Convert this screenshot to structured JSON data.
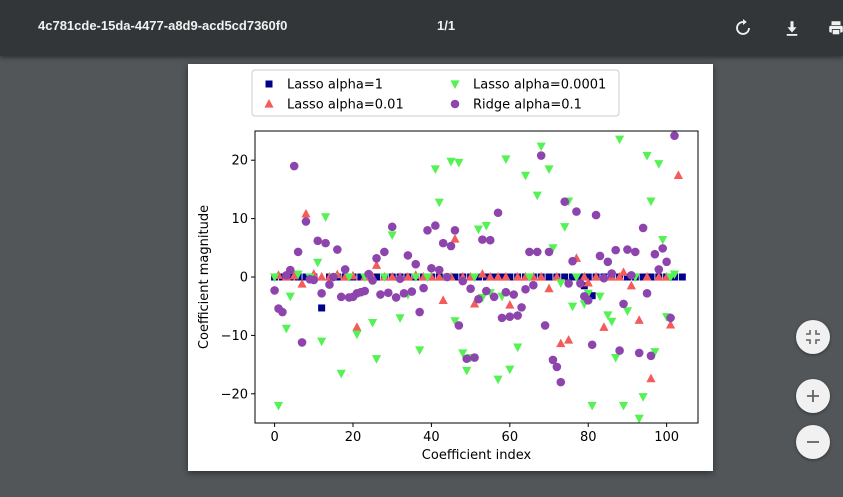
{
  "toolbar": {
    "title": "4c781cde-15da-4477-a8d9-acd5cd7360f0",
    "page_indicator": "1/1",
    "icons": [
      "rotate-icon",
      "download-icon",
      "print-icon"
    ]
  },
  "side_controls": {
    "icons": [
      "fit-page-icon",
      "zoom-in-icon",
      "zoom-out-icon"
    ]
  },
  "colors": {
    "toolbar_bg": "#323639",
    "viewer_bg": "#525659",
    "lasso_1": "#00008b",
    "lasso_001": "#f45b5b",
    "lasso_00001": "#55f255",
    "ridge_01": "#8e44ad"
  },
  "chart_data": {
    "type": "scatter",
    "xlabel": "Coefficient index",
    "ylabel": "Coefficient magnitude",
    "xlim": [
      -5,
      108
    ],
    "ylim": [
      -25,
      25
    ],
    "xticks": [
      0,
      20,
      40,
      60,
      80,
      100
    ],
    "yticks": [
      -20,
      -10,
      0,
      10,
      20
    ],
    "tick_labels_x": [
      "0",
      "20",
      "40",
      "60",
      "80",
      "100"
    ],
    "tick_labels_y": [
      "−20",
      "−10",
      "0",
      "10",
      "20"
    ],
    "legend_placement": "top-center",
    "grid": false,
    "series": [
      {
        "name": "Lasso alpha=1",
        "marker": "square",
        "color": "#00008b",
        "points": [
          [
            0,
            0
          ],
          [
            2,
            0
          ],
          [
            4,
            0
          ],
          [
            6,
            0
          ],
          [
            8,
            0
          ],
          [
            10,
            0
          ],
          [
            12,
            -5.3
          ],
          [
            14,
            0
          ],
          [
            16,
            0
          ],
          [
            18,
            0
          ],
          [
            20,
            0
          ],
          [
            22,
            0
          ],
          [
            24,
            0
          ],
          [
            26,
            0
          ],
          [
            28,
            0
          ],
          [
            30,
            0
          ],
          [
            32,
            0
          ],
          [
            34,
            0
          ],
          [
            36,
            0
          ],
          [
            38,
            0
          ],
          [
            40,
            0
          ],
          [
            42,
            0
          ],
          [
            44,
            0
          ],
          [
            46,
            0
          ],
          [
            48,
            0
          ],
          [
            50,
            0
          ],
          [
            52,
            0
          ],
          [
            54,
            0
          ],
          [
            56,
            0
          ],
          [
            58,
            0
          ],
          [
            60,
            0
          ],
          [
            62,
            0
          ],
          [
            64,
            0
          ],
          [
            66,
            0
          ],
          [
            68,
            0
          ],
          [
            70,
            0
          ],
          [
            72,
            0
          ],
          [
            74,
            0
          ],
          [
            76,
            0
          ],
          [
            78,
            0
          ],
          [
            79,
            -1.5
          ],
          [
            80,
            0
          ],
          [
            81,
            -3.2
          ],
          [
            82,
            0
          ],
          [
            84,
            0
          ],
          [
            86,
            0
          ],
          [
            88,
            0
          ],
          [
            90,
            0
          ],
          [
            92,
            0
          ],
          [
            94,
            0
          ],
          [
            96,
            0
          ],
          [
            98,
            0
          ],
          [
            100,
            0
          ],
          [
            102,
            0
          ],
          [
            104,
            0
          ]
        ]
      },
      {
        "name": "Lasso alpha=0.01",
        "marker": "triangle-up",
        "color": "#f45b5b",
        "points": [
          [
            1,
            0.3
          ],
          [
            3,
            0
          ],
          [
            5,
            0.2
          ],
          [
            7,
            -1.2
          ],
          [
            8,
            10.8
          ],
          [
            10,
            0.5
          ],
          [
            12,
            0
          ],
          [
            14,
            0
          ],
          [
            16,
            0.4
          ],
          [
            18,
            0
          ],
          [
            20,
            0.2
          ],
          [
            21,
            -8.6
          ],
          [
            23,
            0
          ],
          [
            25,
            0
          ],
          [
            26,
            2
          ],
          [
            28,
            0
          ],
          [
            30,
            0
          ],
          [
            32,
            0
          ],
          [
            34,
            0
          ],
          [
            36,
            0.3
          ],
          [
            38,
            0
          ],
          [
            40,
            0
          ],
          [
            42,
            0
          ],
          [
            43,
            -4
          ],
          [
            45,
            0
          ],
          [
            46,
            6.5
          ],
          [
            48,
            0
          ],
          [
            50,
            0
          ],
          [
            51,
            -4.6
          ],
          [
            53,
            0.5
          ],
          [
            55,
            0
          ],
          [
            57,
            0
          ],
          [
            59,
            0
          ],
          [
            60,
            -4.8
          ],
          [
            62,
            0
          ],
          [
            64,
            0
          ],
          [
            66,
            0
          ],
          [
            68,
            0
          ],
          [
            70,
            -2
          ],
          [
            72,
            0
          ],
          [
            73,
            -11.4
          ],
          [
            75,
            -10.8
          ],
          [
            77,
            3.2
          ],
          [
            79,
            0
          ],
          [
            80,
            -1
          ],
          [
            82,
            0
          ],
          [
            84,
            -8.6
          ],
          [
            86,
            0
          ],
          [
            88,
            0
          ],
          [
            89,
            0.8
          ],
          [
            91,
            -1.5
          ],
          [
            93,
            -7.4
          ],
          [
            95,
            0
          ],
          [
            96,
            -17.4
          ],
          [
            98,
            0
          ],
          [
            100,
            0
          ],
          [
            101,
            -8.2
          ],
          [
            103,
            17.4
          ]
        ]
      },
      {
        "name": "Lasso alpha=0.0001",
        "marker": "triangle-down",
        "color": "#55f255",
        "points": [
          [
            0,
            0
          ],
          [
            1,
            -22
          ],
          [
            3,
            -8.8
          ],
          [
            4,
            -3.3
          ],
          [
            6,
            0.5
          ],
          [
            9,
            0
          ],
          [
            11,
            2.5
          ],
          [
            12,
            -11
          ],
          [
            13,
            10.3
          ],
          [
            15,
            0
          ],
          [
            17,
            -16.5
          ],
          [
            19,
            0
          ],
          [
            21,
            -9.8
          ],
          [
            23,
            0
          ],
          [
            25,
            -7.8
          ],
          [
            26,
            -14
          ],
          [
            28,
            0
          ],
          [
            30,
            7.2
          ],
          [
            32,
            -7
          ],
          [
            34,
            -3
          ],
          [
            36,
            0
          ],
          [
            37,
            -12.5
          ],
          [
            39,
            0
          ],
          [
            41,
            18.5
          ],
          [
            42,
            12.8
          ],
          [
            44,
            0
          ],
          [
            45,
            19.8
          ],
          [
            46,
            -7.5
          ],
          [
            47,
            19.6
          ],
          [
            48,
            -13
          ],
          [
            49,
            -16
          ],
          [
            50,
            -13.8
          ],
          [
            51,
            0
          ],
          [
            52,
            8.2
          ],
          [
            53,
            -3.5
          ],
          [
            54,
            8.8
          ],
          [
            55,
            -2.7
          ],
          [
            57,
            -17.5
          ],
          [
            58,
            -3.3
          ],
          [
            59,
            20.2
          ],
          [
            60,
            -15.8
          ],
          [
            62,
            -12
          ],
          [
            64,
            17.4
          ],
          [
            65,
            0
          ],
          [
            67,
            14
          ],
          [
            68,
            22.4
          ],
          [
            70,
            18.5
          ],
          [
            71,
            5
          ],
          [
            73,
            -1
          ],
          [
            74,
            8.6
          ],
          [
            75,
            13
          ],
          [
            76,
            -5
          ],
          [
            77,
            0
          ],
          [
            79,
            -4.6
          ],
          [
            80,
            -2.8
          ],
          [
            81,
            -22
          ],
          [
            83,
            -3.3
          ],
          [
            85,
            -6.5
          ],
          [
            86,
            -7.6
          ],
          [
            87,
            -13.8
          ],
          [
            88,
            23.6
          ],
          [
            89,
            -22
          ],
          [
            90,
            -5.8
          ],
          [
            92,
            0
          ],
          [
            93,
            -24.2
          ],
          [
            94,
            -20.5
          ],
          [
            95,
            20.8
          ],
          [
            96,
            13
          ],
          [
            97,
            -12.8
          ],
          [
            98,
            19.4
          ],
          [
            99,
            6.4
          ],
          [
            100,
            -6.8
          ],
          [
            101,
            0
          ],
          [
            102,
            0.5
          ]
        ]
      },
      {
        "name": "Ridge alpha=0.1",
        "marker": "circle",
        "color": "#8e44ad",
        "points": [
          [
            0,
            -2.3
          ],
          [
            1,
            -5.4
          ],
          [
            2,
            -6
          ],
          [
            3,
            0.3
          ],
          [
            4,
            1.2
          ],
          [
            5,
            19
          ],
          [
            6,
            4.3
          ],
          [
            7,
            -11.2
          ],
          [
            8,
            9.5
          ],
          [
            9,
            -0.4
          ],
          [
            10,
            -0.5
          ],
          [
            11,
            6.2
          ],
          [
            12,
            -2.8
          ],
          [
            13,
            5.8
          ],
          [
            14,
            -1.3
          ],
          [
            15,
            0
          ],
          [
            16,
            4.7
          ],
          [
            17,
            -3.4
          ],
          [
            18,
            1.3
          ],
          [
            19,
            -3.5
          ],
          [
            20,
            -3.4
          ],
          [
            21,
            -2.8
          ],
          [
            22,
            -2.6
          ],
          [
            23,
            -2.4
          ],
          [
            24,
            0.5
          ],
          [
            25,
            -0.6
          ],
          [
            26,
            3.2
          ],
          [
            27,
            -3
          ],
          [
            28,
            4.3
          ],
          [
            29,
            -2.7
          ],
          [
            30,
            8.6
          ],
          [
            31,
            -3.5
          ],
          [
            32,
            -0.3
          ],
          [
            33,
            -2.8
          ],
          [
            34,
            3.7
          ],
          [
            35,
            -2.5
          ],
          [
            36,
            2.2
          ],
          [
            37,
            -6
          ],
          [
            38,
            -1.9
          ],
          [
            39,
            8
          ],
          [
            40,
            1.5
          ],
          [
            41,
            8.8
          ],
          [
            42,
            1.2
          ],
          [
            43,
            5.8
          ],
          [
            44,
            0
          ],
          [
            45,
            5.3
          ],
          [
            46,
            8
          ],
          [
            47,
            -8.3
          ],
          [
            48,
            -0.7
          ],
          [
            49,
            -14
          ],
          [
            50,
            -2
          ],
          [
            51,
            -13.8
          ],
          [
            52,
            -3.8
          ],
          [
            53,
            6.4
          ],
          [
            54,
            -2.4
          ],
          [
            55,
            6.3
          ],
          [
            56,
            -3.4
          ],
          [
            57,
            11
          ],
          [
            58,
            -7
          ],
          [
            59,
            -2.6
          ],
          [
            60,
            -6.8
          ],
          [
            61,
            -3
          ],
          [
            62,
            -6.6
          ],
          [
            63,
            -5.2
          ],
          [
            64,
            -2.1
          ],
          [
            65,
            4.3
          ],
          [
            66,
            -1.4
          ],
          [
            67,
            4.3
          ],
          [
            68,
            20.8
          ],
          [
            69,
            -8.3
          ],
          [
            70,
            4.3
          ],
          [
            71,
            -14.2
          ],
          [
            72,
            -15.4
          ],
          [
            73,
            -18
          ],
          [
            74,
            12.9
          ],
          [
            75,
            -1.1
          ],
          [
            76,
            2.7
          ],
          [
            77,
            11.2
          ],
          [
            78,
            -1.1
          ],
          [
            79,
            -3.3
          ],
          [
            80,
            -4
          ],
          [
            81,
            -11.6
          ],
          [
            82,
            10.6
          ],
          [
            83,
            3.6
          ],
          [
            84,
            -0.2
          ],
          [
            85,
            2.6
          ],
          [
            86,
            0.6
          ],
          [
            87,
            4.6
          ],
          [
            88,
            -12.6
          ],
          [
            89,
            -4.6
          ],
          [
            90,
            4.7
          ],
          [
            91,
            0.3
          ],
          [
            92,
            4.3
          ],
          [
            93,
            -13
          ],
          [
            94,
            8.4
          ],
          [
            95,
            -2.8
          ],
          [
            96,
            -13.5
          ],
          [
            97,
            3.9
          ],
          [
            98,
            1.3
          ],
          [
            99,
            4.9
          ],
          [
            100,
            2.6
          ],
          [
            101,
            -7
          ],
          [
            102,
            24.2
          ]
        ]
      }
    ]
  }
}
